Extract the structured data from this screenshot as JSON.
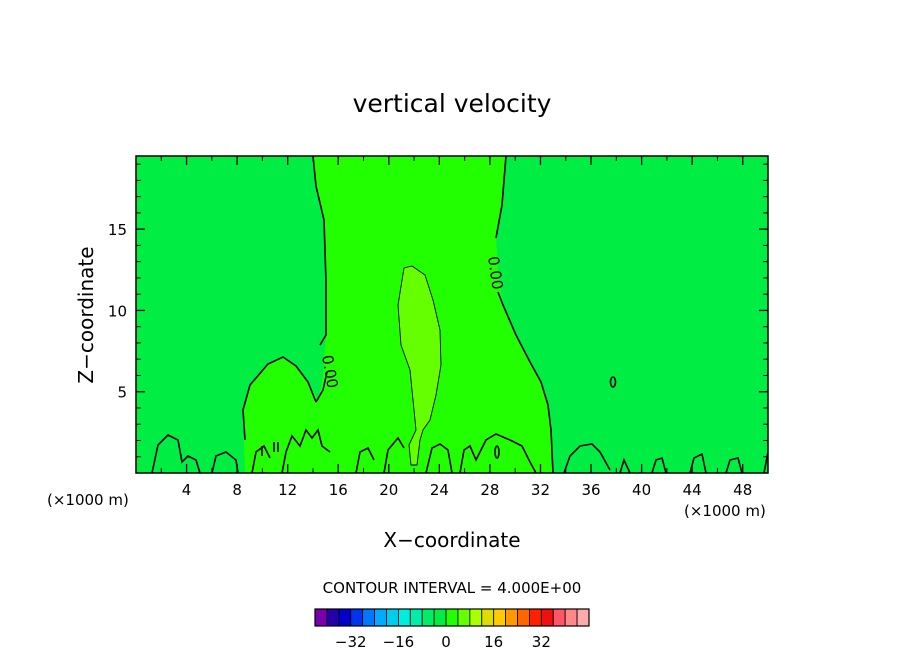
{
  "chart_data": {
    "type": "contour",
    "title": "vertical velocity",
    "xlabel": "X−coordinate",
    "ylabel": "Z−coordinate",
    "x_unit_left": "(×1000 m)",
    "x_unit_right": "(×1000 m)",
    "xlim": [
      0,
      50
    ],
    "ylim": [
      0,
      19.5
    ],
    "x_ticks": [
      4,
      8,
      12,
      16,
      20,
      24,
      28,
      32,
      36,
      40,
      44,
      48
    ],
    "y_ticks": [
      5,
      10,
      15
    ],
    "x_tick_labels": [
      "4",
      "8",
      "12",
      "16",
      "20",
      "24",
      "28",
      "32",
      "36",
      "40",
      "44",
      "48"
    ],
    "y_tick_labels": [
      "5",
      "10",
      "15"
    ],
    "contour_label": "0.00",
    "contour_interval_text": "CONTOUR INTERVAL = 4.000E+00",
    "background_color": "#00ee44",
    "regions": [
      {
        "name": "updraft-column",
        "color": "#22ff00"
      },
      {
        "name": "left-lobe",
        "color": "#22ff00"
      },
      {
        "name": "core",
        "color": "#66ff00"
      }
    ],
    "colorbar": {
      "colors": [
        "#7700aa",
        "#2200aa",
        "#0000cc",
        "#0033ee",
        "#0077ff",
        "#00aaff",
        "#00ccee",
        "#00eedd",
        "#00eeaa",
        "#00ee66",
        "#00ee44",
        "#22ff00",
        "#66ff00",
        "#aaff00",
        "#dddd00",
        "#ffcc00",
        "#ff9900",
        "#ff6600",
        "#ff2200",
        "#ee1111",
        "#ff5566",
        "#ff8888",
        "#ffaaaa"
      ],
      "tick_values": [
        -32,
        -16,
        0,
        16,
        32
      ],
      "tick_labels": [
        "−32",
        "−16",
        "0",
        "16",
        "32"
      ]
    }
  }
}
